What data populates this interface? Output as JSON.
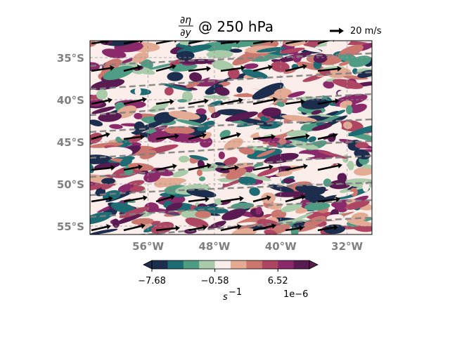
{
  "title": {
    "numerator": "∂η",
    "denominator": "∂y",
    "suffix": "@ 250 hPa"
  },
  "reference_vector": {
    "label": "20 m/s",
    "speed_ms": 20
  },
  "map": {
    "lon_range": [
      -63,
      -29
    ],
    "lat_range": [
      -56,
      -33
    ],
    "lat_ticks": [
      {
        "value": -35,
        "label": "35°S"
      },
      {
        "value": -40,
        "label": "40°S"
      },
      {
        "value": -45,
        "label": "45°S"
      },
      {
        "value": -50,
        "label": "50°S"
      },
      {
        "value": -55,
        "label": "55°S"
      }
    ],
    "lon_ticks": [
      {
        "value": -56,
        "label": "56°W"
      },
      {
        "value": -48,
        "label": "48°W"
      },
      {
        "value": -40,
        "label": "40°W"
      },
      {
        "value": -32,
        "label": "32°W"
      }
    ],
    "gridlines": true
  },
  "colorbar": {
    "ticks": [
      "−7.68",
      "−0.58",
      "6.52"
    ],
    "unit": "s",
    "unit_exponent": "−1",
    "multiplier": "1e−6",
    "colors": [
      "#1c2d4d",
      "#1d6c73",
      "#4f9c84",
      "#a9cba9",
      "#fbeeea",
      "#e3ab94",
      "#cc7670",
      "#ad4563",
      "#8a2a6a",
      "#5a1a52"
    ],
    "extend": "both"
  },
  "colors": {
    "contour_line": "#808080",
    "arrow": "#000000",
    "tick_label": "#808080"
  }
}
